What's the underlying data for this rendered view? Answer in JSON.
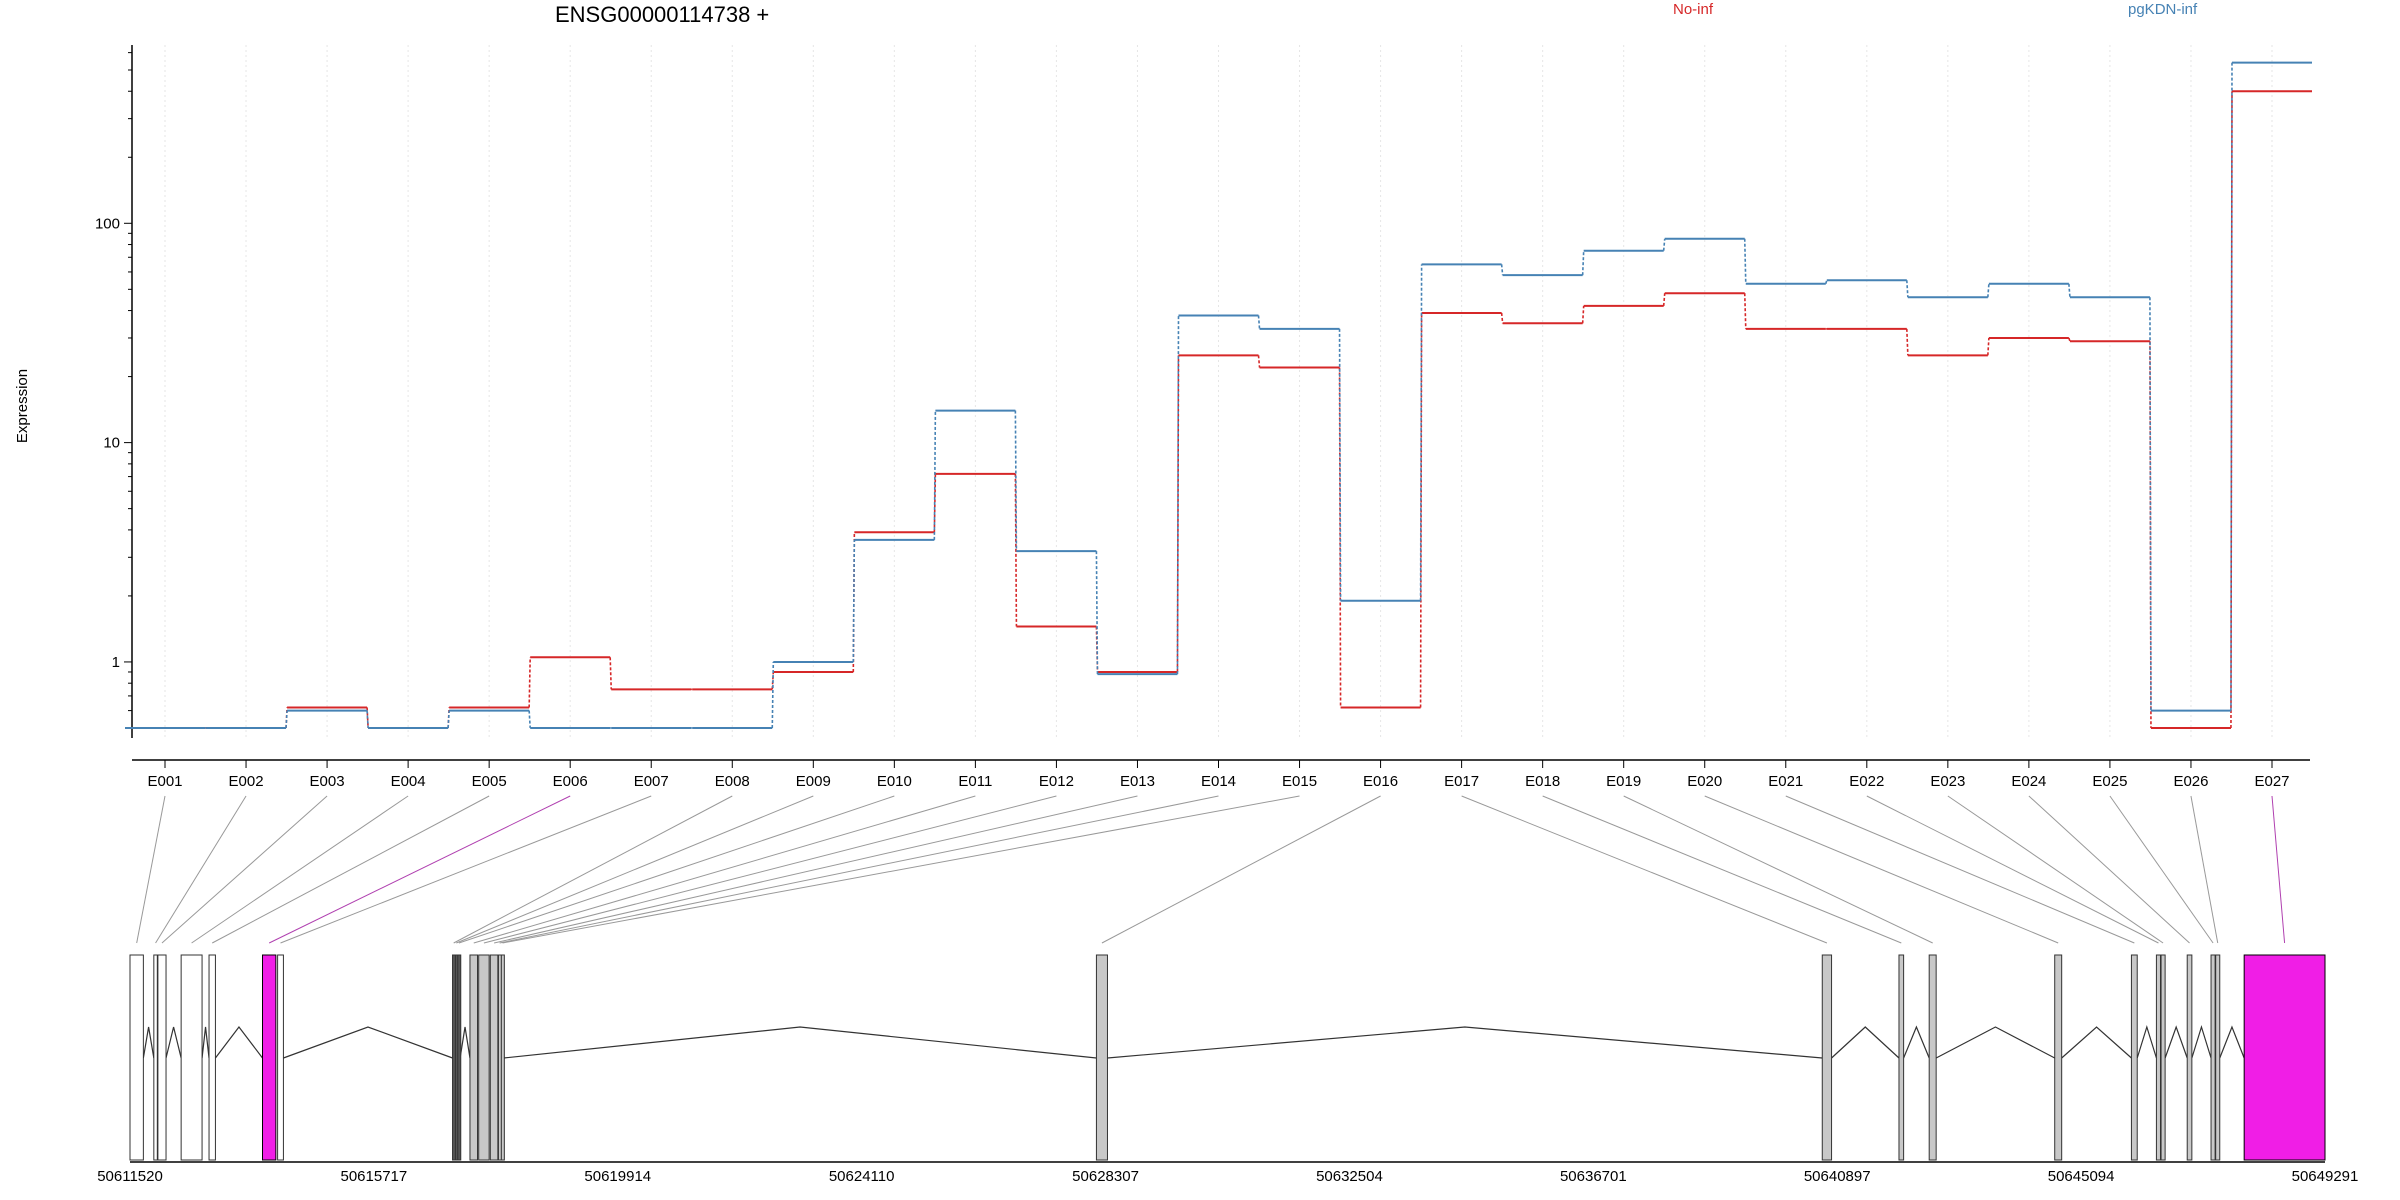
{
  "chart_data": {
    "type": "line",
    "title": "ENSG00000114738 +",
    "ylabel": "Expression",
    "yscale": "log",
    "ylim": [
      0.45,
      650
    ],
    "yticks": [
      1,
      10,
      100
    ],
    "ytick_labels": [
      "1",
      "10",
      "100"
    ],
    "grid": "vertical dotted lines at exon positions",
    "legend_placement": "top",
    "categories": [
      "E001",
      "E002",
      "E003",
      "E004",
      "E005",
      "E006",
      "E007",
      "E008",
      "E009",
      "E010",
      "E011",
      "E012",
      "E013",
      "E014",
      "E015",
      "E016",
      "E017",
      "E018",
      "E019",
      "E020",
      "E021",
      "E022",
      "E023",
      "E024",
      "E025",
      "E026",
      "E027"
    ],
    "series": [
      {
        "name": "No-inf",
        "color": "#d62728",
        "values": [
          0.5,
          0.5,
          0.62,
          0.5,
          0.62,
          1.05,
          0.75,
          0.75,
          0.9,
          3.9,
          7.2,
          1.45,
          0.9,
          25,
          22,
          0.62,
          39,
          35,
          42,
          48,
          33,
          33,
          25,
          30,
          29,
          0.5,
          400
        ]
      },
      {
        "name": "pgKDN-inf",
        "color": "#4682b4",
        "values": [
          0.5,
          0.5,
          0.6,
          0.5,
          0.6,
          0.5,
          0.5,
          0.5,
          1.0,
          3.6,
          14,
          3.2,
          0.88,
          38,
          33,
          1.9,
          65,
          58,
          75,
          85,
          53,
          55,
          46,
          53,
          46,
          0.6,
          540
        ]
      }
    ],
    "gene_model": {
      "coord_labels": [
        "50611520",
        "50615717",
        "50619914",
        "50624110",
        "50628307",
        "50632504",
        "50636701",
        "50640897",
        "50645094",
        "50649291"
      ],
      "coord_range": [
        50611520,
        50649291
      ],
      "highlight_color": "#f01ee6",
      "exons": [
        {
          "id": "E001",
          "start": 50611520,
          "end": 50611750,
          "style": "white"
        },
        {
          "id": "E002",
          "start": 50611930,
          "end": 50611990,
          "style": "white"
        },
        {
          "id": "E003",
          "start": 50612000,
          "end": 50612140,
          "style": "white"
        },
        {
          "id": "E004",
          "start": 50612400,
          "end": 50612760,
          "style": "white"
        },
        {
          "id": "E005",
          "start": 50612880,
          "end": 50612990,
          "style": "white"
        },
        {
          "id": "E006",
          "start": 50613800,
          "end": 50614030,
          "style": "highlight"
        },
        {
          "id": "E007",
          "start": 50614060,
          "end": 50614160,
          "style": "white"
        },
        {
          "id": "E008",
          "start": 50617070,
          "end": 50617110,
          "style": "dark"
        },
        {
          "id": "E009",
          "start": 50617120,
          "end": 50617150,
          "style": "dark"
        },
        {
          "id": "E010",
          "start": 50617160,
          "end": 50617200,
          "style": "dark"
        },
        {
          "id": "E011",
          "start": 50617370,
          "end": 50617500,
          "style": "gray"
        },
        {
          "id": "E012",
          "start": 50617520,
          "end": 50617700,
          "style": "gray"
        },
        {
          "id": "E013",
          "start": 50617720,
          "end": 50617850,
          "style": "gray"
        },
        {
          "id": "E014",
          "start": 50617860,
          "end": 50617900,
          "style": "gray"
        },
        {
          "id": "E015",
          "start": 50617910,
          "end": 50617950,
          "style": "gray"
        },
        {
          "id": "E016",
          "start": 50628150,
          "end": 50628340,
          "style": "gray"
        },
        {
          "id": "E017",
          "start": 50640640,
          "end": 50640800,
          "style": "gray"
        },
        {
          "id": "E018",
          "start": 50641960,
          "end": 50642040,
          "style": "gray"
        },
        {
          "id": "E019",
          "start": 50642480,
          "end": 50642600,
          "style": "gray"
        },
        {
          "id": "E020",
          "start": 50644640,
          "end": 50644760,
          "style": "gray"
        },
        {
          "id": "E021",
          "start": 50645960,
          "end": 50646060,
          "style": "gray"
        },
        {
          "id": "E022",
          "start": 50646390,
          "end": 50646460,
          "style": "gray"
        },
        {
          "id": "E023",
          "start": 50646470,
          "end": 50646540,
          "style": "gray"
        },
        {
          "id": "E024",
          "start": 50646920,
          "end": 50647000,
          "style": "gray"
        },
        {
          "id": "E025",
          "start": 50647330,
          "end": 50647400,
          "style": "gray"
        },
        {
          "id": "E026",
          "start": 50647410,
          "end": 50647480,
          "style": "gray"
        },
        {
          "id": "E027",
          "start": 50647900,
          "end": 50649291,
          "style": "highlight"
        }
      ]
    }
  }
}
